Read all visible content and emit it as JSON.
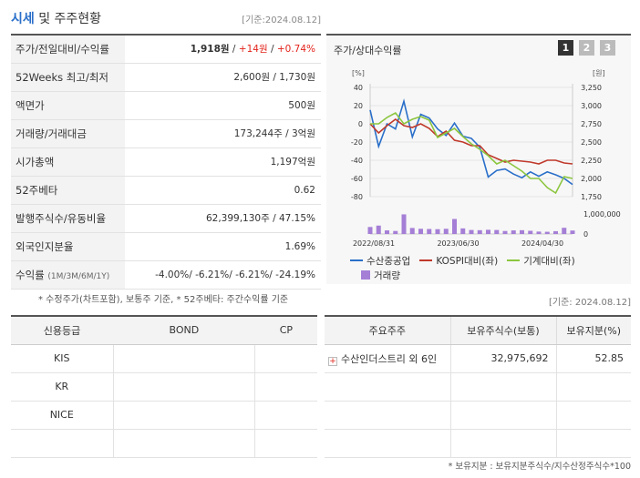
{
  "header": {
    "title_part1": "시세",
    "title_part2": " 및 주주현황",
    "date": "[기준:2024.08.12]"
  },
  "stats": [
    {
      "label": "주가/전일대비/수익률",
      "v1": "1,918원",
      "sep1": " / ",
      "v2": "+14원",
      "sep2": " / ",
      "v3": "+0.74%"
    },
    {
      "label": "52Weeks 최고/최저",
      "value": "2,600원 / 1,730원"
    },
    {
      "label": "액면가",
      "value": "500원"
    },
    {
      "label": "거래량/거래대금",
      "value": "173,244주 / 3억원"
    },
    {
      "label": "시가총액",
      "value": "1,197억원"
    },
    {
      "label": "52주베타",
      "value": "0.62"
    },
    {
      "label": "발행주식수/유동비율",
      "value": "62,399,130주 / 47.15%"
    },
    {
      "label": "외국인지분율",
      "value": "1.69%"
    },
    {
      "label": "수익률",
      "label_small": "(1M/3M/6M/1Y)",
      "value": "-4.00%/ -6.21%/ -6.21%/ -24.19%"
    }
  ],
  "note_left": "* 수정주가(차트포함), 보통주 기준, * 52주베타: 주간수익률 기준",
  "chart": {
    "title": "주가/상대수익률",
    "pages": [
      "1",
      "2",
      "3"
    ],
    "left_unit": "[%]",
    "right_unit": "[원]",
    "left_ticks": [
      "40",
      "20",
      "0",
      "-20",
      "-40",
      "-60",
      "-80"
    ],
    "right_ticks": [
      "3,250",
      "3,000",
      "2,750",
      "2,500",
      "2,250",
      "2,000",
      "1,750"
    ],
    "vol_ticks": [
      "1,000,000",
      "0"
    ],
    "x_ticks": [
      "2022/08/31",
      "2023/06/30",
      "2024/04/30"
    ],
    "legend": [
      "수산중공업",
      "KOSPI대비(좌)",
      "기계대비(좌)",
      "거래량"
    ],
    "colors": {
      "stock": "#2a6fc9",
      "kospi": "#c0392b",
      "machine": "#8cc63f",
      "volume": "#a57fd6"
    }
  },
  "chart_data": {
    "type": "line",
    "x": [
      "2022/08",
      "2022/09",
      "2022/10",
      "2022/11",
      "2022/12",
      "2023/01",
      "2023/02",
      "2023/03",
      "2023/04",
      "2023/05",
      "2023/06",
      "2023/07",
      "2023/08",
      "2023/09",
      "2023/10",
      "2023/11",
      "2023/12",
      "2024/01",
      "2024/02",
      "2024/03",
      "2024/04",
      "2024/05",
      "2024/06",
      "2024/07",
      "2024/08"
    ],
    "series": [
      {
        "name": "수산중공업",
        "axis": "right",
        "values": [
          2940,
          2440,
          2750,
          2680,
          3060,
          2570,
          2880,
          2830,
          2680,
          2590,
          2760,
          2580,
          2550,
          2430,
          2020,
          2110,
          2130,
          2060,
          2010,
          2090,
          2030,
          2090,
          2050,
          2000,
          1918
        ]
      },
      {
        "name": "KOSPI대비(좌)",
        "axis": "left",
        "values": [
          0,
          -10,
          -2,
          5,
          -2,
          -4,
          0,
          -5,
          -14,
          -8,
          -18,
          -20,
          -24,
          -24,
          -34,
          -38,
          -42,
          -40,
          -41,
          -42,
          -44,
          -40,
          -40,
          -43,
          -44
        ]
      },
      {
        "name": "기계대비(좌)",
        "axis": "left",
        "values": [
          0,
          0,
          7,
          12,
          0,
          5,
          8,
          4,
          -15,
          -10,
          -5,
          -14,
          -22,
          -28,
          -35,
          -44,
          -40,
          -46,
          -52,
          -60,
          -60,
          -70,
          -76,
          -58,
          -60
        ]
      },
      {
        "name": "거래량",
        "axis": "volume",
        "values": [
          350000,
          420000,
          180000,
          150000,
          980000,
          300000,
          260000,
          250000,
          240000,
          260000,
          750000,
          280000,
          200000,
          190000,
          210000,
          200000,
          150000,
          180000,
          190000,
          160000,
          120000,
          110000,
          140000,
          310000,
          173244
        ]
      }
    ],
    "ylim_left": [
      -80,
      40
    ],
    "ylim_right": [
      1750,
      3250
    ],
    "ylim_volume": [
      0,
      1000000
    ]
  },
  "note_date2": "[기준: 2024.08.12]",
  "credit_table": {
    "headers": [
      "신용등급",
      "BOND",
      "CP"
    ],
    "rows": [
      [
        "KIS",
        "",
        ""
      ],
      [
        "KR",
        "",
        ""
      ],
      [
        "NICE",
        "",
        ""
      ],
      [
        "",
        "",
        ""
      ]
    ]
  },
  "holders_table": {
    "headers": [
      "주요주주",
      "보유주식수(보통)",
      "보유지분(%)"
    ],
    "rows": [
      [
        "수산인더스트리 외 6인",
        "32,975,692",
        "52.85"
      ],
      [
        "",
        "",
        ""
      ],
      [
        "",
        "",
        ""
      ],
      [
        "",
        "",
        ""
      ]
    ]
  },
  "note_bottom": "* 보유지분 : 보유지분주식수/지수산정주식수*100"
}
